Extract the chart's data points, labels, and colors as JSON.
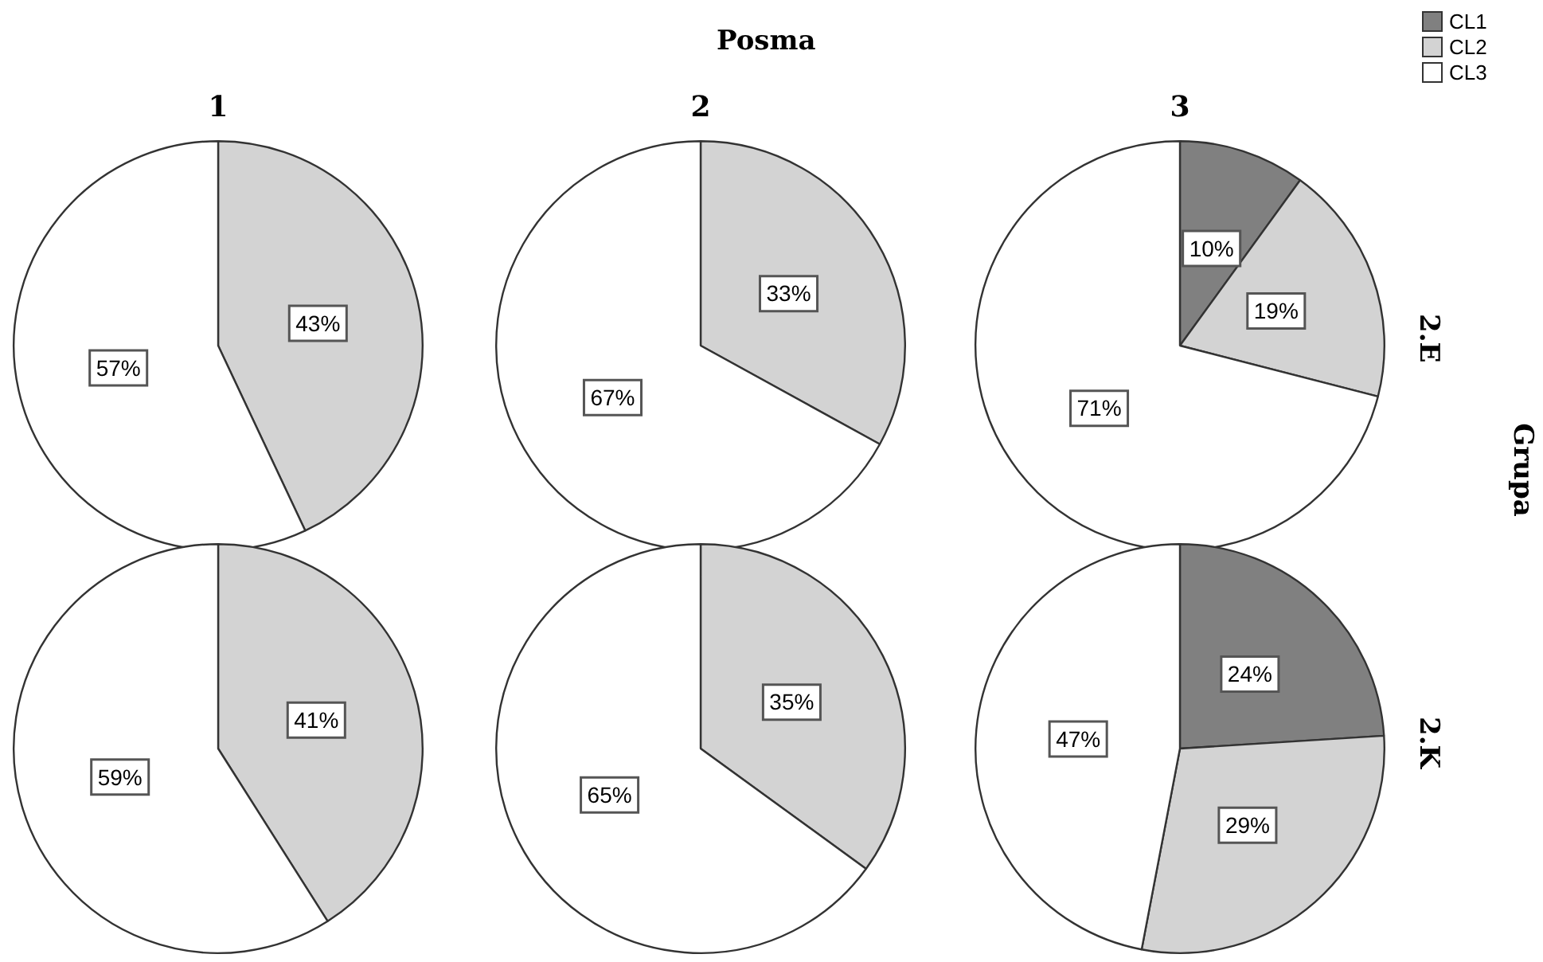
{
  "chart_data": [
    {
      "type": "pie",
      "title": "1",
      "categories": [
        null,
        null,
        null
      ],
      "values": [
        0,
        43,
        57
      ],
      "colors": [
        "#808080",
        "#d3d3d3",
        "#ffffff"
      ],
      "value_labels": [
        null,
        "43%",
        "57%"
      ]
    },
    {
      "type": "pie",
      "title": "2",
      "categories": [
        null,
        null,
        null
      ],
      "values": [
        0,
        33,
        67
      ],
      "colors": [
        "#808080",
        "#d3d3d3",
        "#ffffff"
      ],
      "value_labels": [
        null,
        "33%",
        "67%"
      ]
    },
    {
      "type": "pie",
      "title": "3",
      "y2label": "2.E",
      "categories": [
        "CL1",
        "CL2",
        "CL3"
      ],
      "values": [
        10,
        19,
        71
      ],
      "colors": [
        "#808080",
        "#d3d3d3",
        "#ffffff"
      ],
      "value_labels": [
        "10%",
        "19%",
        "71%"
      ],
      "legend": "top right"
    },
    {
      "type": "pie",
      "categories": [
        null,
        null,
        null
      ],
      "values": [
        0,
        41,
        59
      ],
      "colors": [
        "#808080",
        "#d3d3d3",
        "#ffffff"
      ],
      "value_labels": [
        null,
        "41%",
        "59%"
      ]
    },
    {
      "type": "pie",
      "categories": [
        null,
        null,
        null
      ],
      "values": [
        0,
        35,
        65
      ],
      "colors": [
        "#808080",
        "#d3d3d3",
        "#ffffff"
      ],
      "value_labels": [
        null,
        "35%",
        "65%"
      ]
    },
    {
      "type": "pie",
      "y2label": "2.K",
      "categories": [
        null,
        null,
        null
      ],
      "values": [
        24,
        29,
        47
      ],
      "colors": [
        "#808080",
        "#d3d3d3",
        "#ffffff"
      ],
      "value_labels": [
        "24%",
        "29%",
        "47%"
      ]
    },
    {
      "type": "other",
      "annotations": [
        "Posma",
        "Grupa"
      ]
    }
  ]
}
